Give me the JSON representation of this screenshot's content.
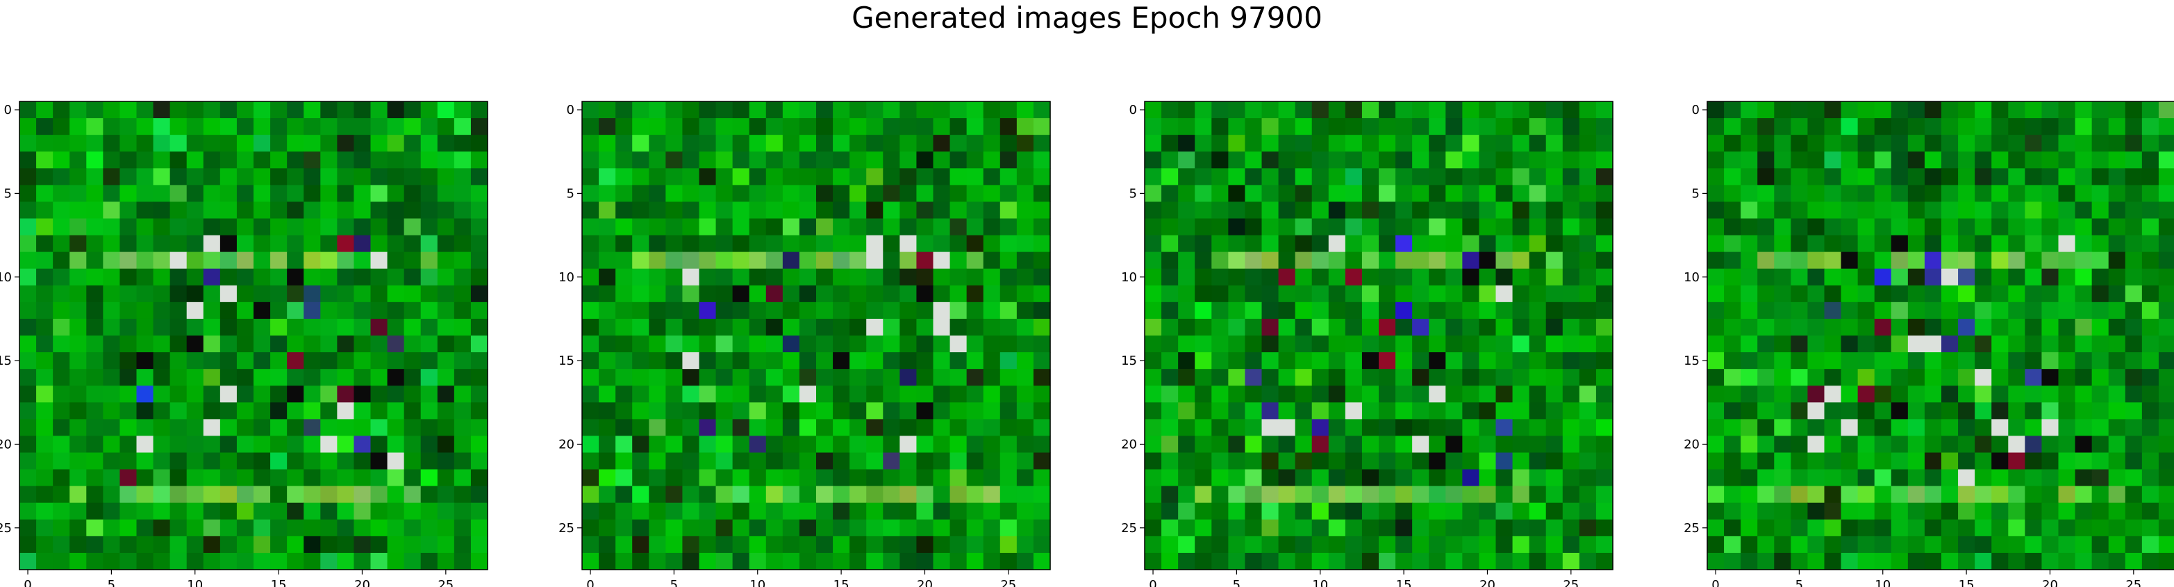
{
  "figure": {
    "title": "Generated images Epoch 97900",
    "panel_count": 4,
    "ticks": {
      "x": [
        "0",
        "5",
        "10",
        "15",
        "20",
        "25"
      ],
      "y": [
        "0",
        "5",
        "10",
        "15",
        "20",
        "25"
      ]
    },
    "image_grid_size": 28,
    "base_color": "#0c7a0c"
  }
}
